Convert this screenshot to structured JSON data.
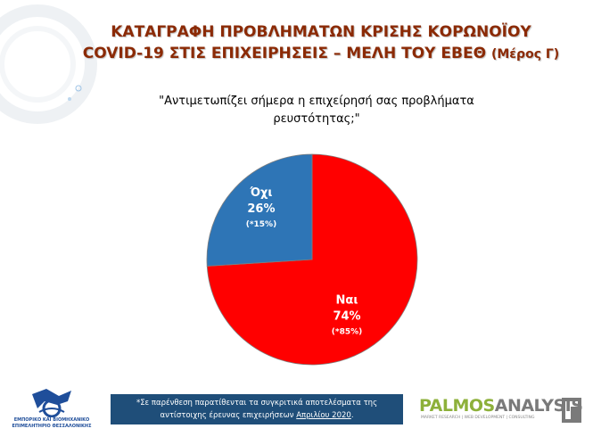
{
  "title": {
    "line1": "ΚΑΤΑΓΡΑΦΗ ΠΡΟΒΛΗΜΑΤΩΝ ΚΡΙΣΗΣ ΚΟΡΩΝΟΪΟΥ",
    "line2": "COVID-19 ΣΤΙΣ ΕΠΙΧΕΙΡΗΣΕΙΣ – ΜΕΛΗ ΤΟΥ ΕΒΕΘ",
    "part": "(Μέρος Γ)"
  },
  "question": "\"Αντιμετωπίζει σήμερα η επιχείρησή σας προβλήματα ρευστότητας;\"",
  "chart_data": {
    "type": "pie",
    "slices": [
      {
        "label": "Ναι",
        "value": 74,
        "value_label": "74%",
        "previous": "(*85%)",
        "color": "#FF0000"
      },
      {
        "label": "Όχι",
        "value": 26,
        "value_label": "26%",
        "previous": "(*15%)",
        "color": "#2E75B6"
      }
    ]
  },
  "footnote": {
    "text": "*Σε παρένθεση παρατίθενται τα συγκριτικά αποτελέσματα της αντίστοιχης έρευνας επιχειρήσεων",
    "link": "Απριλίου 2020",
    "end": "."
  },
  "logo_left": {
    "caption": "ΕΜΠΟΡΙΚΟ ΚΑΙ ΒΙΟΜΗΧΑΝΙΚΟ ΕΠΙΜΕΛΗΤΗΡΙΟ ΘΕΣΣΑΛΟΝΙΚΗΣ"
  },
  "logo_right": {
    "name_a": "PALMOS",
    "name_b": "ANALYSIS",
    "tagline": "MARKET RESEARCH | WEB DEVELOPMENT | CONSULTING"
  },
  "colors": {
    "title": "#8B2A05",
    "footnote_bg": "#1F4E79",
    "yes": "#FF0000",
    "no": "#2E75B6"
  }
}
